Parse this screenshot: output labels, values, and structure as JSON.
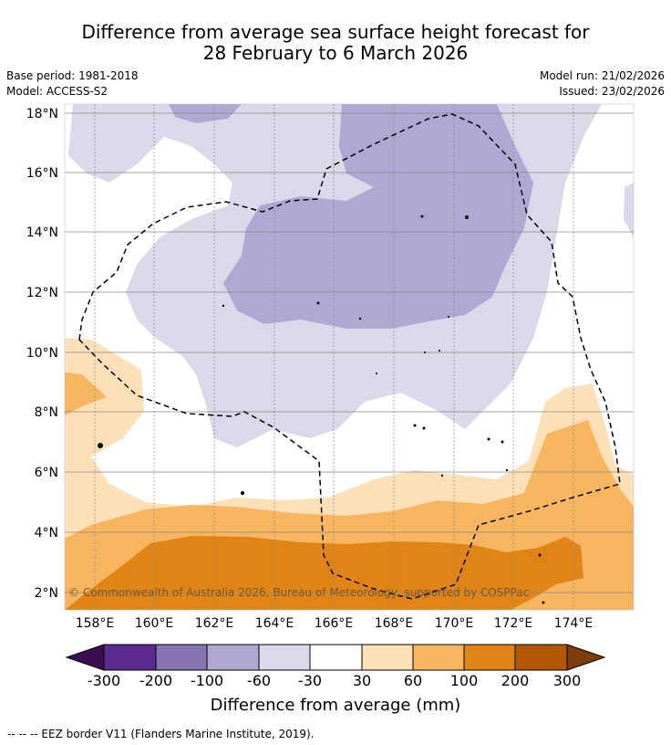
{
  "title": {
    "line1": "Difference from average sea surface height forecast for",
    "line2": "28 February to 6 March 2026"
  },
  "meta": {
    "base_period": "Base period: 1981-2018",
    "model": "Model: ACCESS-S2",
    "model_run": "Model run: 21/02/2026",
    "issued": "Issued: 23/02/2026"
  },
  "map": {
    "region": {
      "lon_min": 157,
      "lon_max": 175.8,
      "lat_min": 1.4,
      "lat_max": 18.3
    },
    "lat_ticks": [
      "18°N",
      "16°N",
      "14°N",
      "12°N",
      "10°N",
      "8°N",
      "6°N",
      "4°N",
      "2°N"
    ],
    "lon_ticks": [
      "158°E",
      "160°E",
      "162°E",
      "164°E",
      "166°E",
      "168°E",
      "170°E",
      "172°E",
      "174°E"
    ],
    "copyright": "© Commonwealth of Australia 2026, Bureau of Meteorology, supported by COSPPac"
  },
  "colorbar": {
    "ticks": [
      "-300",
      "-200",
      "-100",
      "-60",
      "-30",
      "30",
      "60",
      "100",
      "200",
      "300"
    ],
    "colors": [
      "#3b0f4f",
      "#5b2a8f",
      "#8574b0",
      "#b0a8d2",
      "#d9d9ea",
      "#ffffff",
      "#fde0b8",
      "#f8b560",
      "#e08416",
      "#b35806",
      "#7f3b08"
    ],
    "label": "Difference from average (mm)"
  },
  "footnote": "--  --  -- EEZ border V11 (Flanders Marine Institute, 2019)."
}
